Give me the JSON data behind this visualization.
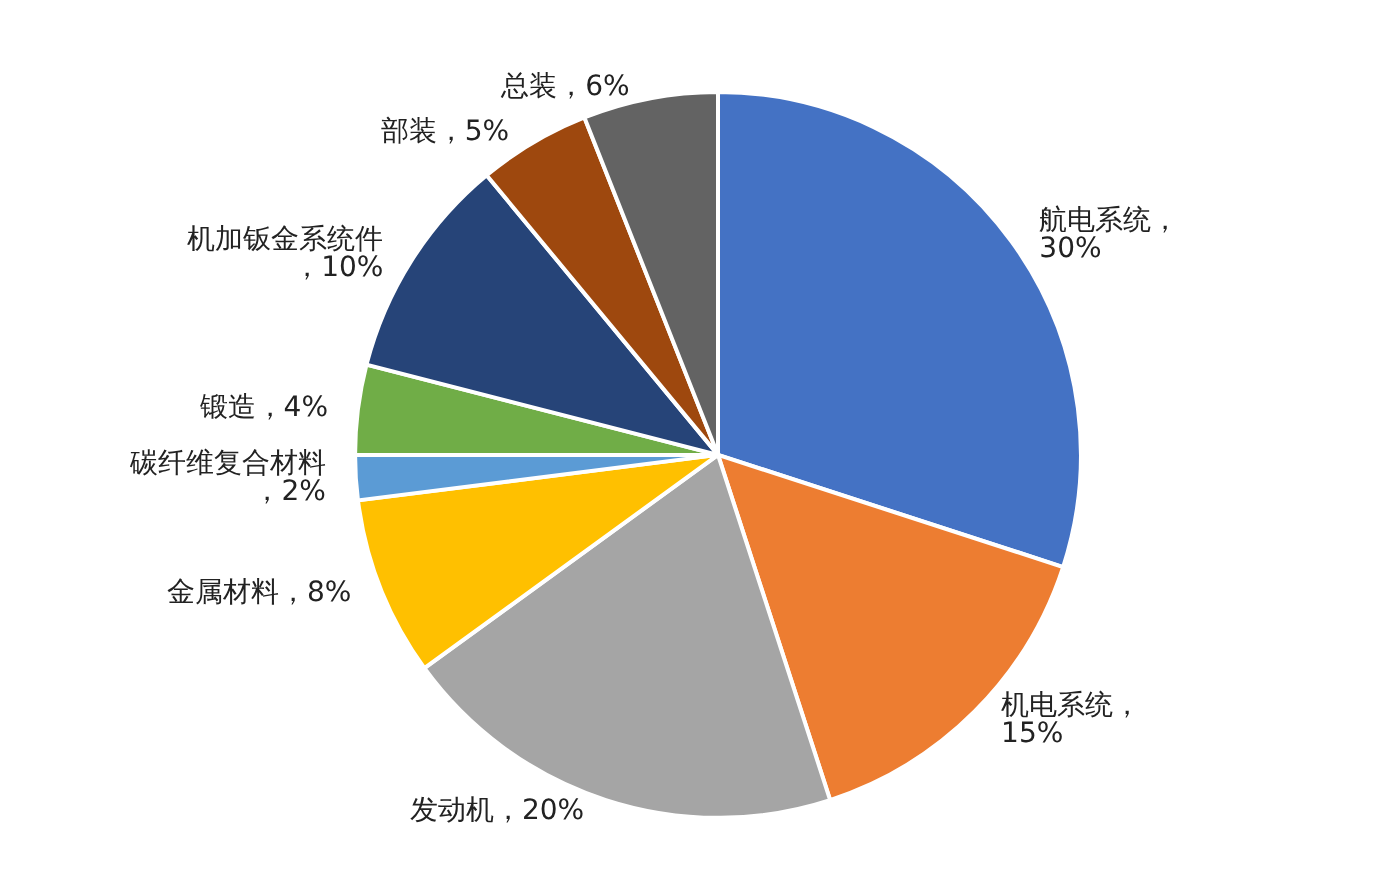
{
  "chart_data": {
    "type": "pie",
    "categories": [
      "航电系统",
      "机电系统",
      "发动机",
      "金属材料",
      "碳纤维复合材料",
      "锻造",
      "机加钣金系统件",
      "部装",
      "总装"
    ],
    "values": [
      30,
      15,
      20,
      8,
      2,
      4,
      10,
      5,
      6
    ],
    "value_labels": [
      "，30%",
      "，15%",
      "，20%",
      "，8%",
      "，2%",
      "，4%",
      "，10%",
      "，5%",
      "，6%"
    ],
    "colors": [
      "#4472c4",
      "#ed7d31",
      "#a5a5a5",
      "#ffc000",
      "#5b9bd5",
      "#70ad47",
      "#264478",
      "#9e480e",
      "#636363"
    ],
    "legend": false
  }
}
